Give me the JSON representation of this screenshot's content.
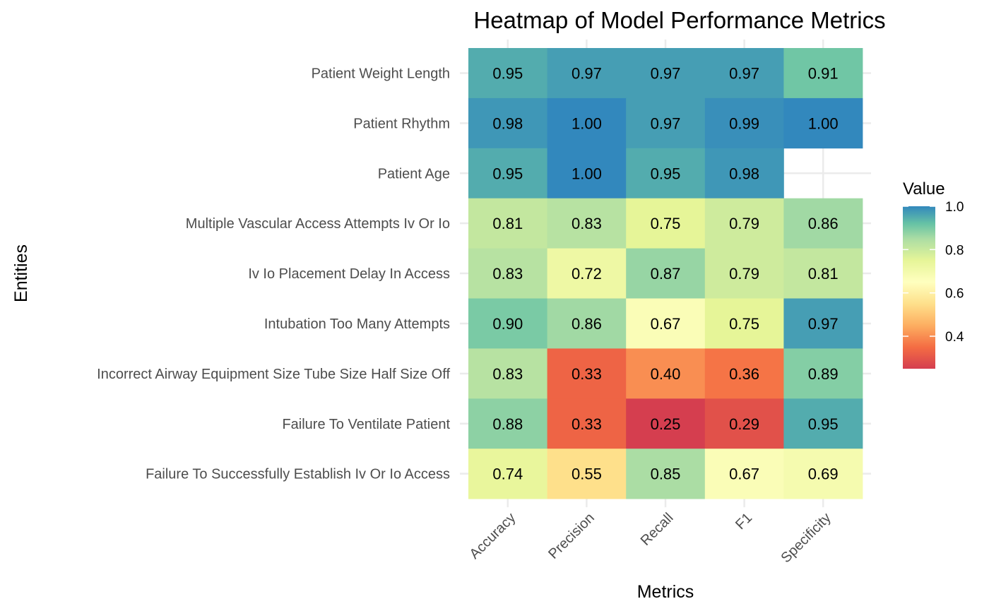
{
  "chart_data": {
    "type": "heatmap",
    "title": "Heatmap of Model Performance Metrics",
    "xlabel": "Metrics",
    "ylabel": "Entities",
    "x_categories": [
      "Accuracy",
      "Precision",
      "Recall",
      "F1",
      "Specificity"
    ],
    "y_categories": [
      "Patient Weight Length",
      "Patient Rhythm",
      "Patient Age",
      "Multiple Vascular Access Attempts Iv Or Io",
      "Iv Io Placement Delay In Access",
      "Intubation Too Many Attempts",
      "Incorrect Airway Equipment Size Tube Size Half Size Off",
      "Failure To Ventilate Patient",
      "Failure To Successfully Establish Iv Or Io Access"
    ],
    "values": [
      [
        0.95,
        0.97,
        0.97,
        0.97,
        0.91
      ],
      [
        0.98,
        1.0,
        0.97,
        0.99,
        1.0
      ],
      [
        0.95,
        1.0,
        0.95,
        0.98,
        null
      ],
      [
        0.81,
        0.83,
        0.75,
        0.79,
        0.86
      ],
      [
        0.83,
        0.72,
        0.87,
        0.79,
        0.81
      ],
      [
        0.9,
        0.86,
        0.67,
        0.75,
        0.97
      ],
      [
        0.83,
        0.33,
        0.4,
        0.36,
        0.89
      ],
      [
        0.88,
        0.33,
        0.25,
        0.29,
        0.95
      ],
      [
        0.74,
        0.55,
        0.85,
        0.67,
        0.69
      ]
    ],
    "labels": [
      [
        "0.95",
        "0.97",
        "0.97",
        "0.97",
        "0.91"
      ],
      [
        "0.98",
        "1.00",
        "0.97",
        "0.99",
        "1.00"
      ],
      [
        "0.95",
        "1.00",
        "0.95",
        "0.98",
        ""
      ],
      [
        "0.81",
        "0.83",
        "0.75",
        "0.79",
        "0.86"
      ],
      [
        "0.83",
        "0.72",
        "0.87",
        "0.79",
        "0.81"
      ],
      [
        "0.90",
        "0.86",
        "0.67",
        "0.75",
        "0.97"
      ],
      [
        "0.83",
        "0.33",
        "0.40",
        "0.36",
        "0.89"
      ],
      [
        "0.88",
        "0.33",
        "0.25",
        "0.29",
        "0.95"
      ],
      [
        "0.74",
        "0.55",
        "0.85",
        "0.67",
        "0.69"
      ]
    ],
    "legend": {
      "title": "Value",
      "ticks": [
        0.4,
        0.6,
        0.8,
        1.0
      ],
      "tick_labels": [
        "0.4",
        "0.6",
        "0.8",
        "1.0"
      ],
      "range": [
        0.25,
        1.0
      ],
      "placement": "right"
    },
    "colorscale": [
      {
        "v": 0.25,
        "color": "#D53E4F"
      },
      {
        "v": 0.35,
        "color": "#F46D43"
      },
      {
        "v": 0.45,
        "color": "#FDAE61"
      },
      {
        "v": 0.55,
        "color": "#FEE08B"
      },
      {
        "v": 0.65,
        "color": "#FFFFBF"
      },
      {
        "v": 0.75,
        "color": "#E6F598"
      },
      {
        "v": 0.85,
        "color": "#ABDDA4"
      },
      {
        "v": 0.92,
        "color": "#66C2A5"
      },
      {
        "v": 1.0,
        "color": "#3288BD"
      }
    ],
    "grid": true,
    "x_tick_rotation": "45 degrees"
  }
}
